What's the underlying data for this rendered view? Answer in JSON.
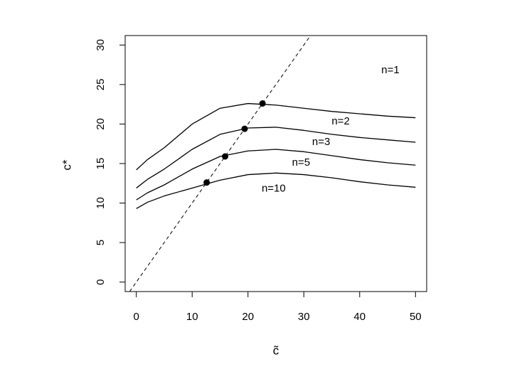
{
  "chart_data": {
    "type": "line",
    "xlabel": "c̃",
    "ylabel": "c*",
    "xlim": [
      -2,
      52
    ],
    "ylim": [
      -1.2,
      31.2
    ],
    "xticks": [
      0,
      10,
      20,
      30,
      40,
      50
    ],
    "yticks": [
      0,
      5,
      10,
      15,
      20,
      25,
      30
    ],
    "x": [
      0,
      2,
      5,
      10,
      15,
      20,
      25,
      30,
      35,
      40,
      45,
      50
    ],
    "color": "#000000",
    "series": [
      {
        "values": [
          14.2,
          15.5,
          17.0,
          20.0,
          22.0,
          22.6,
          22.4,
          22.0,
          21.6,
          21.3,
          21.0,
          20.8
        ]
      },
      {
        "values": [
          11.9,
          13.0,
          14.3,
          16.8,
          18.7,
          19.5,
          19.6,
          19.2,
          18.7,
          18.3,
          18.0,
          17.7
        ]
      },
      {
        "values": [
          10.4,
          11.3,
          12.3,
          14.3,
          15.9,
          16.6,
          16.8,
          16.5,
          16.0,
          15.5,
          15.1,
          14.8
        ]
      },
      {
        "values": [
          9.3,
          10.1,
          10.9,
          11.9,
          12.9,
          13.6,
          13.8,
          13.6,
          13.2,
          12.7,
          12.3,
          12.0
        ]
      }
    ],
    "points": {
      "x": [
        22.6,
        19.4,
        15.9,
        12.6
      ],
      "y": [
        22.6,
        19.4,
        15.9,
        12.6
      ]
    },
    "annotations": [
      {
        "text": "n=1",
        "x": 45.5,
        "y": 26.8
      },
      {
        "text": "n=2",
        "x": 36.6,
        "y": 20.3
      },
      {
        "text": "n=3",
        "x": 33.1,
        "y": 17.7
      },
      {
        "text": "n=5",
        "x": 29.5,
        "y": 15.1
      },
      {
        "text": "n=10",
        "x": 24.6,
        "y": 11.8
      }
    ]
  }
}
